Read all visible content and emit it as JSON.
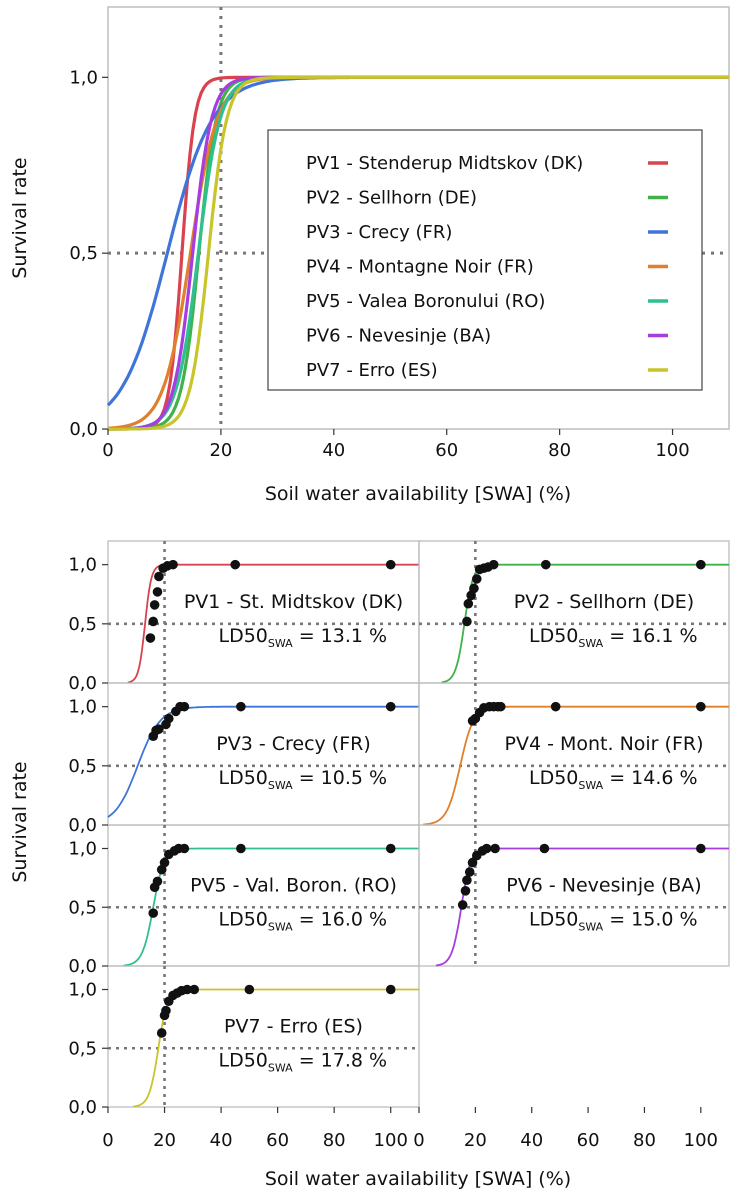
{
  "chart_data": [
    {
      "type": "line",
      "xlabel": "Soil water availability [SWA] (%)",
      "ylabel": "Survival rate",
      "xlim": [
        0,
        110
      ],
      "ylim": [
        0,
        1.2
      ],
      "x_ticks": [
        "0",
        "20",
        "40",
        "60",
        "80",
        "100"
      ],
      "x_tick_values": [
        0,
        20,
        40,
        60,
        80,
        100
      ],
      "y_ticks": [
        "0,0",
        "0,5",
        "1,0"
      ],
      "y_tick_values": [
        0,
        0.5,
        1.0
      ],
      "reference_lines": {
        "x": 20,
        "y": 0.5
      },
      "legend_position": "center-right",
      "series": [
        {
          "name": "PV1 - Stenderup Midtskov (DK)",
          "color": "#d9434f",
          "ld50": 13.1,
          "slope": 0.9
        },
        {
          "name": "PV2 - Sellhorn (DE)",
          "color": "#3fb24a",
          "ld50": 16.1,
          "slope": 0.65
        },
        {
          "name": "PV3 - Crecy (FR)",
          "color": "#3f74d8",
          "ld50": 10.5,
          "slope": 0.25
        },
        {
          "name": "PV4 - Montagne Noir (FR)",
          "color": "#e07f2c",
          "ld50": 14.6,
          "slope": 0.42
        },
        {
          "name": "PV5 - Valea Boronului (RO)",
          "color": "#2fbf91",
          "ld50": 16.0,
          "slope": 0.52
        },
        {
          "name": "PV6 - Nevesinje (BA)",
          "color": "#a43ee0",
          "ld50": 15.0,
          "slope": 0.6
        },
        {
          "name": "PV7 - Erro (ES)",
          "color": "#c9c42a",
          "ld50": 17.8,
          "slope": 0.62
        }
      ]
    },
    {
      "type": "scatter",
      "xlabel": "Soil water availability [SWA] (%)",
      "ylabel": "Survival rate",
      "xlim": [
        0,
        110
      ],
      "ylim": [
        0,
        1.2
      ],
      "x_ticks": [
        "0",
        "20",
        "40",
        "60",
        "80",
        "100"
      ],
      "x_tick_values": [
        0,
        20,
        40,
        60,
        80,
        100
      ],
      "y_ticks": [
        "0,0",
        "0,5",
        "1,0"
      ],
      "y_tick_values": [
        0,
        0.5,
        1.0
      ],
      "reference_lines": {
        "x": 20,
        "y": 0.5
      },
      "ld_label_prefix": "LD50",
      "ld_label_sub": "SWA",
      "panels": [
        {
          "title": "PV1 - St. Midtskov (DK)",
          "ld_value": "= 13.1 %",
          "color": "#d9434f",
          "ld50": 13.1,
          "slope": 0.9,
          "points": {
            "x": [
              15,
              16,
              16.5,
              17.5,
              18,
              19.5,
              21,
              23,
              45,
              100
            ],
            "y": [
              0.38,
              0.52,
              0.66,
              0.77,
              0.9,
              0.97,
              0.99,
              1.0,
              1.0,
              1.0
            ]
          }
        },
        {
          "title": "PV2 - Sellhorn (DE)",
          "ld_value": "= 16.1 %",
          "color": "#3fb24a",
          "ld50": 16.1,
          "slope": 0.65,
          "points": {
            "x": [
              17,
              17.5,
              18.5,
              19.5,
              20.5,
              21.5,
              23,
              24.5,
              26.5,
              45,
              100
            ],
            "y": [
              0.52,
              0.67,
              0.74,
              0.8,
              0.88,
              0.96,
              0.97,
              0.98,
              1.0,
              1.0,
              1.0
            ]
          }
        },
        {
          "title": "PV3 - Crecy (FR)",
          "ld_value": "= 10.5 %",
          "color": "#3f74d8",
          "ld50": 10.5,
          "slope": 0.25,
          "points": {
            "x": [
              16,
              17,
              18,
              20.5,
              21.5,
              24,
              25.5,
              27,
              47,
              100
            ],
            "y": [
              0.75,
              0.8,
              0.81,
              0.85,
              0.9,
              0.96,
              1.0,
              1.0,
              1.0,
              1.0
            ]
          }
        },
        {
          "title": "PV4 - Mont. Noir (FR)",
          "ld_value": "= 14.6 %",
          "color": "#e07f2c",
          "ld50": 14.6,
          "slope": 0.42,
          "points": {
            "x": [
              19,
              20,
              21.5,
              23,
              25,
              26.5,
              28,
              29,
              48.5,
              100
            ],
            "y": [
              0.88,
              0.9,
              0.95,
              0.99,
              1.0,
              1.0,
              1.0,
              1.0,
              1.0,
              1.0
            ]
          }
        },
        {
          "title": "PV5 - Val. Boron. (RO)",
          "ld_value": "= 16.0 %",
          "color": "#2fbf91",
          "ld50": 16.0,
          "slope": 0.52,
          "points": {
            "x": [
              16,
              16.5,
              17.5,
              19,
              20,
              21.5,
              23.5,
              25,
              27,
              47,
              100
            ],
            "y": [
              0.45,
              0.67,
              0.72,
              0.82,
              0.88,
              0.95,
              0.98,
              1.0,
              1.0,
              1.0,
              1.0
            ]
          }
        },
        {
          "title": "PV6 - Nevesinje (BA)",
          "ld_value": "= 15.0 %",
          "color": "#a43ee0",
          "ld50": 15.0,
          "slope": 0.6,
          "points": {
            "x": [
              15.5,
              16.5,
              17,
              18,
              19,
              20.5,
              22.5,
              24,
              27,
              44.5,
              100
            ],
            "y": [
              0.52,
              0.64,
              0.73,
              0.8,
              0.88,
              0.94,
              0.98,
              1.0,
              1.0,
              1.0,
              1.0
            ]
          }
        },
        {
          "title": "PV7 - Erro (ES)",
          "ld_value": "= 17.8 %",
          "color": "#c9c42a",
          "ld50": 17.8,
          "slope": 0.62,
          "points": {
            "x": [
              19,
              20,
              20.5,
              21.5,
              23,
              24.5,
              26,
              28,
              30.5,
              50,
              100
            ],
            "y": [
              0.63,
              0.78,
              0.82,
              0.9,
              0.95,
              0.97,
              0.99,
              1.0,
              1.0,
              1.0,
              1.0
            ]
          }
        }
      ]
    }
  ]
}
